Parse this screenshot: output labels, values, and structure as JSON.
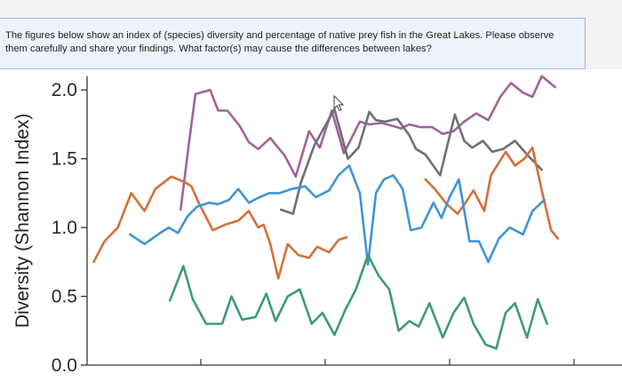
{
  "question": {
    "text": "The figures below show an index of (species) diversity and percentage of native prey fish in the Great Lakes. Please observe them carefully and share your findings. What factor(s) may cause the differences between lakes?"
  },
  "colors": {
    "banner_border": "#9bbbe3",
    "banner_bg": "#eef3fb",
    "purple": "#a1639a",
    "gray": "#6f6f75",
    "orange": "#d4703b",
    "blue": "#3f95d6",
    "green": "#3e9a79"
  },
  "chart_data": {
    "type": "line",
    "title": "",
    "xlabel": "",
    "ylabel": "Diversity (Shannon Index)",
    "ylim": [
      0,
      2.15
    ],
    "yticks": [
      "0.0",
      "0.5",
      "1.0",
      "1.5",
      "2.0"
    ],
    "ytick_values": [
      0.0,
      0.5,
      1.0,
      1.5,
      2.0
    ],
    "xlim": [
      0,
      40
    ],
    "grid": false,
    "series": [
      {
        "color": "#a1639a",
        "values": [
          [
            7,
            1.13
          ],
          [
            7.6,
            1.6
          ],
          [
            8.1,
            1.97
          ],
          [
            9.2,
            2.0
          ],
          [
            9.8,
            1.85
          ],
          [
            10.5,
            1.85
          ],
          [
            11.4,
            1.74
          ],
          [
            12.1,
            1.62
          ],
          [
            12.8,
            1.57
          ],
          [
            13.7,
            1.65
          ],
          [
            14.8,
            1.52
          ],
          [
            15.6,
            1.37
          ],
          [
            16.6,
            1.7
          ],
          [
            17.4,
            1.58
          ],
          [
            18.3,
            1.85
          ],
          [
            19.2,
            1.54
          ],
          [
            20.4,
            1.77
          ],
          [
            21.1,
            1.75
          ],
          [
            22.0,
            1.76
          ],
          [
            22.8,
            1.74
          ],
          [
            23.5,
            1.72
          ],
          [
            24.1,
            1.75
          ],
          [
            24.9,
            1.73
          ],
          [
            25.8,
            1.73
          ],
          [
            26.6,
            1.68
          ],
          [
            27.4,
            1.7
          ],
          [
            28.2,
            1.77
          ],
          [
            29.1,
            1.83
          ],
          [
            30.0,
            1.78
          ],
          [
            30.9,
            1.95
          ],
          [
            31.7,
            2.05
          ],
          [
            32.6,
            1.98
          ],
          [
            33.3,
            1.95
          ],
          [
            34.0,
            2.1
          ],
          [
            35.0,
            2.02
          ]
        ]
      },
      {
        "color": "#6f6f75",
        "values": [
          [
            14.5,
            1.13
          ],
          [
            15.4,
            1.1
          ],
          [
            16.0,
            1.33
          ],
          [
            17.0,
            1.6
          ],
          [
            18.5,
            1.86
          ],
          [
            19.5,
            1.5
          ],
          [
            20.3,
            1.58
          ],
          [
            21.1,
            1.84
          ],
          [
            21.6,
            1.78
          ],
          [
            22.3,
            1.77
          ],
          [
            23.2,
            1.79
          ],
          [
            24.1,
            1.67
          ],
          [
            24.6,
            1.57
          ],
          [
            25.3,
            1.53
          ],
          [
            26.4,
            1.38
          ],
          [
            27.5,
            1.82
          ],
          [
            28.2,
            1.63
          ],
          [
            28.8,
            1.58
          ],
          [
            29.6,
            1.63
          ],
          [
            30.3,
            1.55
          ],
          [
            31.1,
            1.57
          ],
          [
            32.0,
            1.63
          ],
          [
            33.0,
            1.52
          ],
          [
            34.0,
            1.42
          ]
        ]
      },
      {
        "color": "#d4703b",
        "values": [
          [
            0.5,
            0.75
          ],
          [
            1.3,
            0.9
          ],
          [
            2.3,
            1.0
          ],
          [
            3.3,
            1.25
          ],
          [
            4.3,
            1.12
          ],
          [
            5.1,
            1.28
          ],
          [
            6.3,
            1.37
          ],
          [
            7.3,
            1.33
          ],
          [
            7.8,
            1.3
          ],
          [
            8.4,
            1.17
          ],
          [
            9.4,
            0.98
          ],
          [
            10.3,
            1.02
          ],
          [
            11.3,
            1.05
          ],
          [
            12.1,
            1.12
          ],
          [
            12.8,
            1.0
          ],
          [
            13.2,
            1.02
          ],
          [
            13.7,
            0.88
          ],
          [
            14.3,
            0.63
          ],
          [
            15.0,
            0.88
          ],
          [
            15.8,
            0.8
          ],
          [
            16.6,
            0.78
          ],
          [
            17.2,
            0.86
          ],
          [
            18.1,
            0.82
          ],
          [
            18.8,
            0.91
          ],
          [
            19.4,
            0.93
          ]
        ]
      },
      {
        "color": "#d4703b",
        "values": [
          [
            25.3,
            1.35
          ],
          [
            26.0,
            1.28
          ],
          [
            26.9,
            1.17
          ],
          [
            27.7,
            1.1
          ],
          [
            28.3,
            1.18
          ],
          [
            28.9,
            1.27
          ],
          [
            29.7,
            1.12
          ],
          [
            30.2,
            1.38
          ],
          [
            31.3,
            1.55
          ],
          [
            32.0,
            1.45
          ],
          [
            32.7,
            1.5
          ],
          [
            33.3,
            1.58
          ],
          [
            34.0,
            1.27
          ],
          [
            34.7,
            0.98
          ],
          [
            35.2,
            0.92
          ]
        ]
      },
      {
        "color": "#3f95d6",
        "values": [
          [
            3.2,
            0.95
          ],
          [
            4.3,
            0.88
          ],
          [
            5.3,
            0.95
          ],
          [
            6.1,
            1.0
          ],
          [
            6.8,
            0.96
          ],
          [
            7.5,
            1.08
          ],
          [
            8.2,
            1.15
          ],
          [
            9.1,
            1.18
          ],
          [
            9.8,
            1.17
          ],
          [
            10.6,
            1.2
          ],
          [
            11.3,
            1.28
          ],
          [
            12.1,
            1.18
          ],
          [
            12.9,
            1.22
          ],
          [
            13.6,
            1.25
          ],
          [
            14.4,
            1.25
          ],
          [
            15.3,
            1.28
          ],
          [
            16.3,
            1.3
          ],
          [
            17.1,
            1.22
          ],
          [
            18.1,
            1.27
          ],
          [
            18.8,
            1.38
          ],
          [
            19.6,
            1.45
          ],
          [
            20.4,
            1.25
          ],
          [
            21.0,
            0.73
          ],
          [
            21.6,
            1.25
          ],
          [
            22.2,
            1.35
          ],
          [
            22.9,
            1.38
          ],
          [
            23.6,
            1.28
          ],
          [
            24.2,
            0.98
          ],
          [
            25.0,
            1.0
          ],
          [
            25.9,
            1.18
          ],
          [
            26.5,
            1.07
          ],
          [
            27.1,
            1.22
          ],
          [
            27.8,
            1.35
          ],
          [
            28.6,
            0.9
          ],
          [
            29.3,
            0.9
          ],
          [
            30.0,
            0.75
          ],
          [
            30.8,
            0.92
          ],
          [
            31.6,
            1.0
          ],
          [
            32.6,
            0.95
          ],
          [
            33.3,
            1.12
          ],
          [
            34.2,
            1.2
          ]
        ]
      },
      {
        "color": "#3e9a79",
        "values": [
          [
            6.2,
            0.47
          ],
          [
            7.2,
            0.72
          ],
          [
            7.9,
            0.48
          ],
          [
            8.9,
            0.3
          ],
          [
            10.1,
            0.3
          ],
          [
            10.8,
            0.5
          ],
          [
            11.6,
            0.33
          ],
          [
            12.6,
            0.35
          ],
          [
            13.4,
            0.52
          ],
          [
            14.1,
            0.32
          ],
          [
            15.0,
            0.5
          ],
          [
            15.9,
            0.55
          ],
          [
            16.8,
            0.3
          ],
          [
            17.6,
            0.38
          ],
          [
            18.5,
            0.22
          ],
          [
            19.3,
            0.4
          ],
          [
            20.1,
            0.55
          ],
          [
            21.0,
            0.8
          ],
          [
            21.8,
            0.65
          ],
          [
            22.6,
            0.55
          ],
          [
            23.3,
            0.25
          ],
          [
            24.1,
            0.32
          ],
          [
            24.8,
            0.28
          ],
          [
            25.6,
            0.45
          ],
          [
            26.6,
            0.2
          ],
          [
            27.4,
            0.38
          ],
          [
            28.2,
            0.49
          ],
          [
            28.9,
            0.3
          ],
          [
            29.8,
            0.15
          ],
          [
            30.6,
            0.12
          ],
          [
            31.3,
            0.38
          ],
          [
            32.0,
            0.45
          ],
          [
            32.9,
            0.2
          ],
          [
            33.7,
            0.48
          ],
          [
            34.4,
            0.3
          ]
        ]
      }
    ]
  }
}
